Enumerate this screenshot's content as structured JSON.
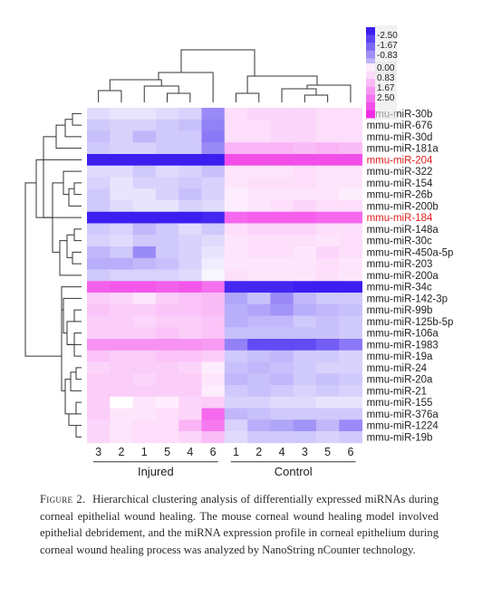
{
  "chart_data": {
    "type": "heatmap",
    "legend": {
      "ticks": [
        "-2.50",
        "-1.67",
        "-0.83",
        "0.00",
        "0.83",
        "1.67",
        "2.50"
      ],
      "placement": "top-right"
    },
    "columns": [
      "3",
      "2",
      "1",
      "5",
      "4",
      "6",
      "1",
      "2",
      "4",
      "3",
      "5",
      "6"
    ],
    "groups": [
      {
        "label": "Injured",
        "start": 0,
        "end": 5
      },
      {
        "label": "Control",
        "start": 6,
        "end": 11
      }
    ],
    "rows": [
      "mmu-miR-30b",
      "mmu-miR-676",
      "mmu-miR-30d",
      "mmu-miR-181a",
      "mmu-miR-204",
      "mmu-miR-322",
      "mmu-miR-154",
      "mmu-miR-26b",
      "mmu-miR-200b",
      "mmu-miR-184",
      "mmu-miR-148a",
      "mmu-miR-30c",
      "mmu-miR-450a-5p",
      "mmu-miR-203",
      "mmu-miR-200a",
      "mmu-miR-34c",
      "mmu-miR-142-3p",
      "mmu-miR-99b",
      "mmu-miR-125b-5p",
      "mmu-miR-106a",
      "mmu-miR-1983",
      "mmu-miR-19a",
      "mmu-miR-24",
      "mmu-miR-20a",
      "mmu-miR-21",
      "mmu-miR-155",
      "mmu-miR-376a",
      "mmu-miR-1224",
      "mmu-miR-19b"
    ],
    "highlight_rows": [
      "mmu-miR-204",
      "mmu-miR-184"
    ],
    "values": [
      [
        -0.4,
        -0.3,
        -0.3,
        -0.4,
        -0.5,
        -1.3,
        0.4,
        0.5,
        0.5,
        0.5,
        0.4,
        0.4
      ],
      [
        -0.6,
        -0.5,
        -0.5,
        -0.6,
        -0.7,
        -1.4,
        0.4,
        0.4,
        0.5,
        0.5,
        0.4,
        0.4
      ],
      [
        -0.7,
        -0.5,
        -0.8,
        -0.6,
        -0.6,
        -1.5,
        0.4,
        0.4,
        0.5,
        0.5,
        0.4,
        0.4
      ],
      [
        -0.6,
        -0.5,
        -0.5,
        -0.6,
        -0.6,
        -1.3,
        0.9,
        0.9,
        0.9,
        0.8,
        0.9,
        0.8
      ],
      [
        -2.5,
        -2.5,
        -2.5,
        -2.5,
        -2.5,
        -2.5,
        2.1,
        2.1,
        2.1,
        2.1,
        2.1,
        2.1
      ],
      [
        -0.4,
        -0.4,
        -0.6,
        -0.4,
        -0.5,
        -0.7,
        0.3,
        0.3,
        0.3,
        0.4,
        0.3,
        0.3
      ],
      [
        -0.5,
        -0.3,
        -0.5,
        -0.5,
        -0.6,
        -0.5,
        0.3,
        0.4,
        0.4,
        0.4,
        0.3,
        0.3
      ],
      [
        -0.6,
        -0.3,
        -0.3,
        -0.5,
        -0.7,
        -0.5,
        0.2,
        0.3,
        0.3,
        0.3,
        0.3,
        0.2
      ],
      [
        -0.6,
        -0.4,
        -0.3,
        -0.3,
        -0.5,
        -0.4,
        0.2,
        0.3,
        0.4,
        0.5,
        0.4,
        0.4
      ],
      [
        -2.5,
        -2.5,
        -2.5,
        -2.5,
        -2.5,
        -2.4,
        1.8,
        1.9,
        1.9,
        1.9,
        1.8,
        1.8
      ],
      [
        -0.6,
        -0.5,
        -0.8,
        -0.6,
        -0.4,
        -0.6,
        0.4,
        0.5,
        0.5,
        0.5,
        0.4,
        0.4
      ],
      [
        -0.5,
        -0.4,
        -0.6,
        -0.6,
        -0.5,
        -0.4,
        0.3,
        0.4,
        0.4,
        0.4,
        0.3,
        0.4
      ],
      [
        -0.8,
        -0.6,
        -1.3,
        -0.6,
        -0.5,
        -0.3,
        0.3,
        0.4,
        0.4,
        0.3,
        0.5,
        0.4
      ],
      [
        -0.9,
        -0.9,
        -0.8,
        -0.7,
        -0.5,
        -0.2,
        0.3,
        0.3,
        0.3,
        0.3,
        0.4,
        0.3
      ],
      [
        -0.6,
        -0.5,
        -0.5,
        -0.5,
        -0.4,
        -0.1,
        0.4,
        0.3,
        0.3,
        0.3,
        0.4,
        0.3
      ],
      [
        1.9,
        2.0,
        2.0,
        1.9,
        2.0,
        1.7,
        -2.4,
        -2.4,
        -2.4,
        -2.5,
        -2.5,
        -2.5
      ],
      [
        0.6,
        0.5,
        0.3,
        0.6,
        0.7,
        0.8,
        -1.0,
        -0.7,
        -1.3,
        -0.8,
        -0.6,
        -0.6
      ],
      [
        0.7,
        0.6,
        0.6,
        0.7,
        0.7,
        0.8,
        -0.9,
        -1.0,
        -1.2,
        -0.9,
        -0.8,
        -0.7
      ],
      [
        0.6,
        0.6,
        0.5,
        0.6,
        0.6,
        0.7,
        -0.9,
        -0.8,
        -0.8,
        -0.6,
        -0.7,
        -0.6
      ],
      [
        0.6,
        0.6,
        0.6,
        0.7,
        0.6,
        0.7,
        -0.7,
        -0.7,
        -0.7,
        -0.7,
        -0.7,
        -0.6
      ],
      [
        1.3,
        1.3,
        1.3,
        1.3,
        1.3,
        1.2,
        -1.4,
        -2.0,
        -2.0,
        -2.0,
        -1.8,
        -1.5
      ],
      [
        0.7,
        0.6,
        0.6,
        0.7,
        0.7,
        0.6,
        -0.6,
        -0.7,
        -0.8,
        -0.6,
        -0.6,
        -0.5
      ],
      [
        0.5,
        0.6,
        0.6,
        0.6,
        0.5,
        0.2,
        -0.7,
        -0.8,
        -0.7,
        -0.6,
        -0.5,
        -0.5
      ],
      [
        0.6,
        0.6,
        0.5,
        0.6,
        0.6,
        0.3,
        -0.8,
        -0.7,
        -0.8,
        -0.6,
        -0.7,
        -0.6
      ],
      [
        0.6,
        0.6,
        0.6,
        0.6,
        0.6,
        0.2,
        -0.6,
        -0.7,
        -0.6,
        -0.5,
        -0.6,
        -0.5
      ],
      [
        0.6,
        0.0,
        0.3,
        0.2,
        0.5,
        0.6,
        -0.5,
        -0.5,
        -0.4,
        -0.4,
        -0.3,
        -0.3
      ],
      [
        0.6,
        0.3,
        0.3,
        0.4,
        0.5,
        1.8,
        -0.8,
        -0.7,
        -0.6,
        -0.6,
        -0.6,
        -0.6
      ],
      [
        0.5,
        0.3,
        0.4,
        0.4,
        0.9,
        1.6,
        -0.5,
        -0.9,
        -1.0,
        -1.2,
        -0.8,
        -1.3
      ],
      [
        0.5,
        0.3,
        0.4,
        0.4,
        0.5,
        0.8,
        -0.4,
        -0.6,
        -0.6,
        -0.6,
        -0.5,
        -0.6
      ]
    ]
  },
  "colors": {
    "negative": "#3c1ef0",
    "positive": "#f02ee6",
    "neutral": "#ffffff",
    "highlight_label": "#e0201e"
  },
  "caption": {
    "label": "Figure 2.",
    "text": "Hierarchical clustering analysis of differentially expressed miRNAs during corneal epithelial wound healing. The mouse corneal wound healing model involved epithelial debridement, and the miRNA expression profile in corneal epithelium during corneal wound healing process was analyzed by NanoString nCounter technology."
  }
}
